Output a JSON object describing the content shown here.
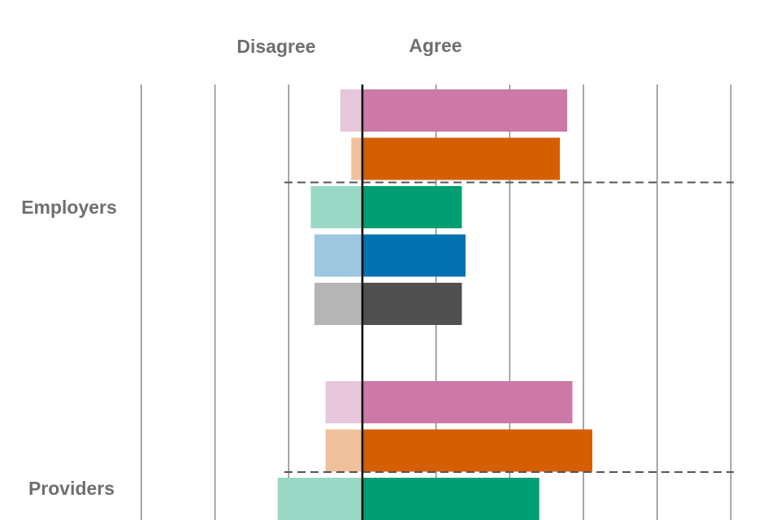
{
  "chart_data": {
    "type": "bar",
    "orientation": "horizontal",
    "stacked": "diverging",
    "header_left": "Disagree",
    "header_right": "Agree",
    "axis_range": [
      -3,
      5
    ],
    "grid_step": 1,
    "colors": {
      "agree": [
        "#cc79a7",
        "#d55e00",
        "#009e73",
        "#0072b2",
        "#505050"
      ],
      "disagree": [
        "#e8c6dc",
        "#efc09a",
        "#9ad8c6",
        "#9dc6e0",
        "#b5b5b5"
      ]
    },
    "groups": [
      {
        "label": "Employers",
        "agree": [
          2.78,
          2.68,
          1.35,
          1.4,
          1.35
        ],
        "disagree": [
          0.3,
          0.15,
          0.7,
          0.65,
          0.65
        ]
      },
      {
        "label": "Providers",
        "agree": [
          2.85,
          3.12,
          2.4
        ],
        "disagree": [
          0.5,
          0.5,
          1.15
        ]
      }
    ]
  }
}
